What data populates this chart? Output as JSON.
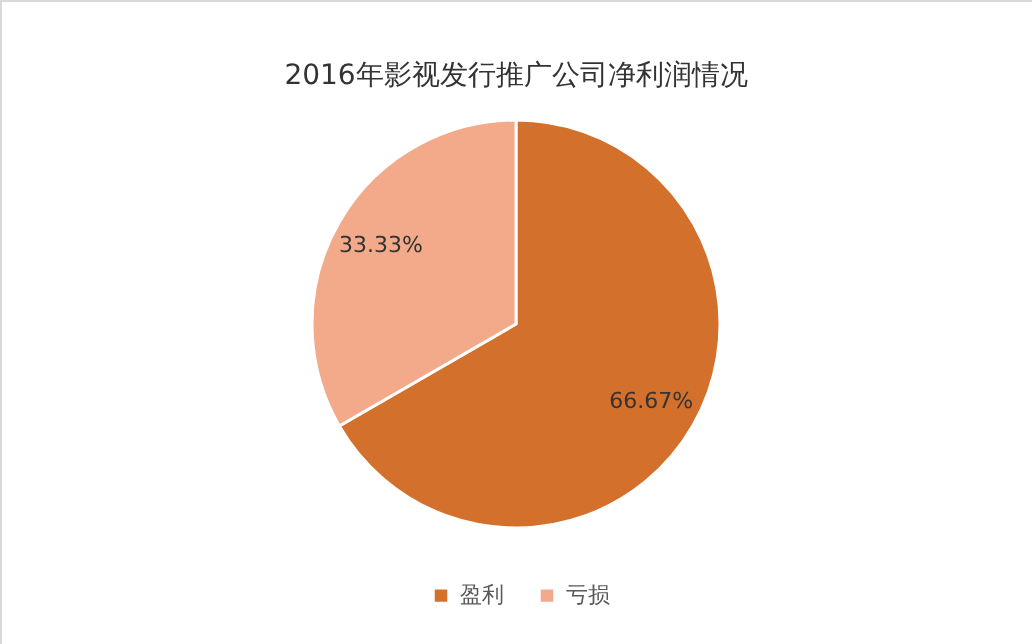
{
  "chart_data": {
    "type": "pie",
    "title": "2016年影视发行推广公司净利润情况",
    "categories": [
      "盈利",
      "亏损"
    ],
    "values": [
      66.67,
      33.33
    ],
    "value_labels": [
      "66.67%",
      "33.33%"
    ],
    "colors": [
      "#d2702c",
      "#f2aa8a"
    ],
    "legend": "bottom"
  }
}
